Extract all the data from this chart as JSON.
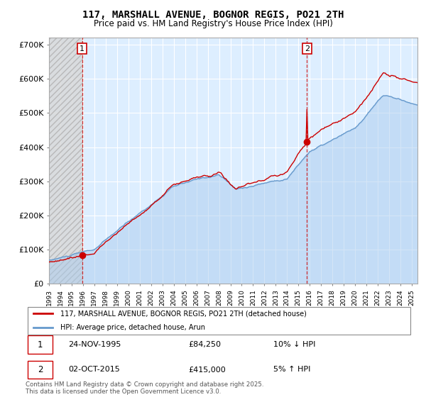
{
  "title_line1": "117, MARSHALL AVENUE, BOGNOR REGIS, PO21 2TH",
  "title_line2": "Price paid vs. HM Land Registry's House Price Index (HPI)",
  "background_color": "#ffffff",
  "plot_bg_color": "#ddeeff",
  "grid_color": "#ffffff",
  "hpi_color": "#6699cc",
  "price_color": "#cc0000",
  "annotation1": [
    "1",
    "24-NOV-1995",
    "£84,250",
    "10% ↓ HPI"
  ],
  "annotation2": [
    "2",
    "02-OCT-2015",
    "£415,000",
    "5% ↑ HPI"
  ],
  "legend_line1": "117, MARSHALL AVENUE, BOGNOR REGIS, PO21 2TH (detached house)",
  "legend_line2": "HPI: Average price, detached house, Arun",
  "footer": "Contains HM Land Registry data © Crown copyright and database right 2025.\nThis data is licensed under the Open Government Licence v3.0.",
  "ylim": [
    0,
    720000
  ],
  "yticks": [
    0,
    100000,
    200000,
    300000,
    400000,
    500000,
    600000,
    700000
  ],
  "ytick_labels": [
    "£0",
    "£100K",
    "£200K",
    "£300K",
    "£400K",
    "£500K",
    "£600K",
    "£700K"
  ],
  "xlim_start": 1993.0,
  "xlim_end": 2025.5,
  "vline1_x": 1995.92,
  "vline2_x": 2015.75,
  "marker1_y": 84250,
  "marker2_y": 415000,
  "hatch_end_x": 1993.5
}
